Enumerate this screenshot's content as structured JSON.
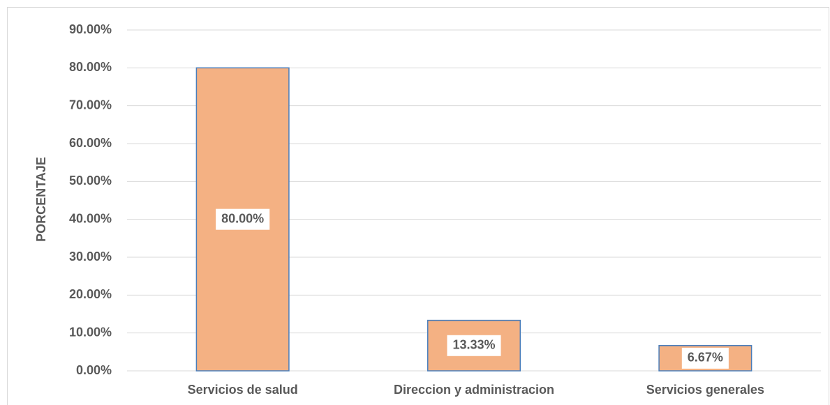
{
  "chart_data": {
    "type": "bar",
    "y_label": "PORCENTAJE",
    "categories": [
      "Servicios de salud",
      "Direccion y administracion",
      "Servicios generales"
    ],
    "values": [
      80,
      13.33,
      6.67
    ],
    "value_labels": [
      "80.00%",
      "13.33%",
      "6.67%"
    ],
    "color": "#f4b183",
    "edge_color": "#4a7ebb",
    "ylim": [
      0,
      90
    ],
    "yticks": [
      {
        "value": 0,
        "label": "0.00%"
      },
      {
        "value": 10,
        "label": "10.00%"
      },
      {
        "value": 20,
        "label": "20.00%"
      },
      {
        "value": 30,
        "label": "30.00%"
      },
      {
        "value": 40,
        "label": "40.00%"
      },
      {
        "value": 50,
        "label": "50.00%"
      },
      {
        "value": 60,
        "label": "60.00%"
      },
      {
        "value": 70,
        "label": "70.00%"
      },
      {
        "value": 80,
        "label": "80.00%"
      },
      {
        "value": 90,
        "label": "90.00%"
      }
    ],
    "grid": true
  }
}
